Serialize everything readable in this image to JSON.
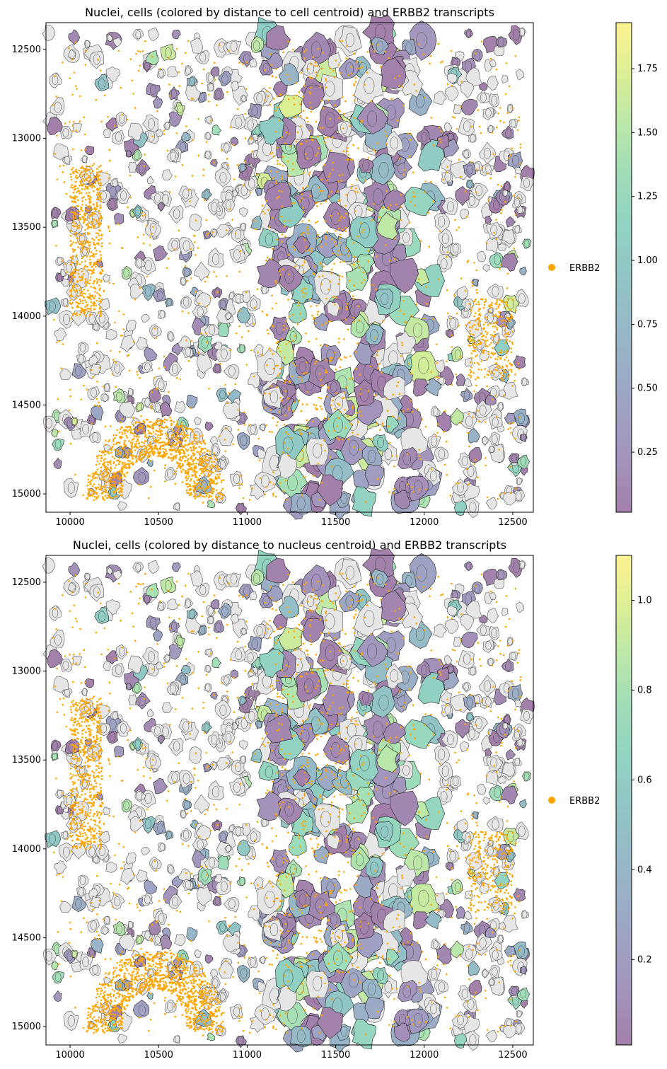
{
  "chart_data": [
    {
      "type": "scatter",
      "title": "Nuclei, cells (colored by distance to cell centroid) and ERBB2 transcripts",
      "xlabel": "",
      "ylabel": "",
      "xlim": [
        9864,
        12616
      ],
      "ylim": [
        15103,
        12349
      ],
      "y_inverted": true,
      "xticks": [
        10000,
        10500,
        11000,
        11500,
        12000,
        12500
      ],
      "yticks": [
        12500,
        13000,
        13500,
        14000,
        14500,
        15000
      ],
      "grid": false,
      "colormap": "viridis",
      "cell_alpha": 0.5,
      "colorbar": {
        "range": [
          0.015,
          1.93
        ],
        "ticks": [
          "0.25",
          "0.50",
          "0.75",
          "1.00",
          "1.25",
          "1.50",
          "1.75"
        ]
      },
      "legend": {
        "placement": "right",
        "entries": [
          {
            "label": "ERBB2",
            "color": "#ffa500"
          }
        ]
      },
      "unassigned_cell_color": "#e6e6e6",
      "transcript_color": "#ffa500"
    },
    {
      "type": "scatter",
      "title": "Nuclei, cells (colored by distance to nucleus centroid) and ERBB2 transcripts",
      "xlabel": "",
      "ylabel": "",
      "xlim": [
        9864,
        12616
      ],
      "ylim": [
        15103,
        12349
      ],
      "y_inverted": true,
      "xticks": [
        10000,
        10500,
        11000,
        11500,
        12000,
        12500
      ],
      "yticks": [
        12500,
        13000,
        13500,
        14000,
        14500,
        15000
      ],
      "grid": false,
      "colormap": "viridis",
      "cell_alpha": 0.5,
      "colorbar": {
        "range": [
          0.01,
          1.1
        ],
        "ticks": [
          "0.2",
          "0.4",
          "0.6",
          "0.8",
          "1.0"
        ]
      },
      "legend": {
        "placement": "right",
        "entries": [
          {
            "label": "ERBB2",
            "color": "#ffa500"
          }
        ]
      },
      "unassigned_cell_color": "#e6e6e6",
      "transcript_color": "#ffa500"
    }
  ]
}
